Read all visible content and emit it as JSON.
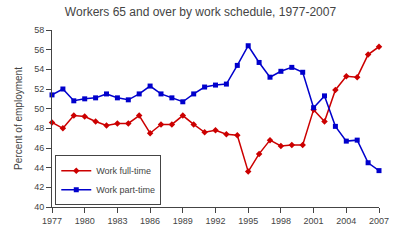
{
  "chart_data": {
    "type": "line",
    "title": "Workers 65 and over by work schedule, 1977-2007",
    "y_label": "Percent of employment",
    "x": [
      1977,
      1978,
      1979,
      1980,
      1981,
      1982,
      1983,
      1984,
      1985,
      1986,
      1987,
      1988,
      1989,
      1990,
      1991,
      1992,
      1993,
      1994,
      1995,
      1996,
      1997,
      1998,
      1999,
      2000,
      2001,
      2002,
      2003,
      2004,
      2005,
      2006,
      2007
    ],
    "series": [
      {
        "name": "Work full-time",
        "color": "#cc0000",
        "marker": "diamond",
        "values": [
          48.6,
          48.0,
          49.3,
          49.2,
          48.7,
          48.3,
          48.5,
          48.5,
          49.3,
          47.5,
          48.4,
          48.4,
          49.3,
          48.4,
          47.6,
          47.8,
          47.4,
          47.3,
          43.6,
          45.4,
          46.8,
          46.2,
          46.3,
          46.3,
          49.9,
          48.7,
          51.9,
          53.3,
          53.2,
          55.5,
          56.3
        ]
      },
      {
        "name": "Work part-time",
        "color": "#0000cc",
        "marker": "square",
        "values": [
          51.4,
          52.0,
          50.8,
          51.0,
          51.1,
          51.5,
          51.1,
          50.9,
          51.5,
          52.3,
          51.5,
          51.1,
          50.7,
          51.5,
          52.2,
          52.4,
          52.5,
          54.4,
          56.4,
          54.7,
          53.2,
          53.8,
          54.2,
          53.7,
          50.1,
          51.3,
          48.2,
          46.7,
          46.8,
          44.5,
          43.7
        ]
      }
    ],
    "xlim": [
      1977,
      2007
    ],
    "xticks": [
      1977,
      1980,
      1983,
      1986,
      1989,
      1992,
      1995,
      1998,
      2001,
      2004,
      2007
    ],
    "ylim": [
      40,
      58
    ],
    "yticks": [
      40,
      42,
      44,
      46,
      48,
      50,
      52,
      54,
      56,
      58
    ],
    "grid": false,
    "legend": "lower left"
  }
}
